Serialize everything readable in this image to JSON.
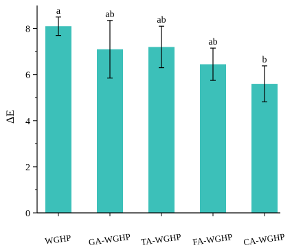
{
  "chart_data": {
    "type": "bar",
    "title": "",
    "xlabel": "",
    "ylabel": "ΔE",
    "ylim": [
      0,
      9
    ],
    "yticks": [
      0,
      2,
      4,
      6,
      8
    ],
    "grid": false,
    "bar_color": "#3cc0b9",
    "categories": [
      "WGHP",
      "GA-WGHP",
      "TA-WGHP",
      "FA-WGHP",
      "CA-WGHP"
    ],
    "values": [
      8.1,
      7.1,
      7.2,
      6.45,
      5.6
    ],
    "errors": [
      0.4,
      1.25,
      0.9,
      0.7,
      0.78
    ],
    "significance": [
      "a",
      "ab",
      "ab",
      "ab",
      "b"
    ]
  }
}
